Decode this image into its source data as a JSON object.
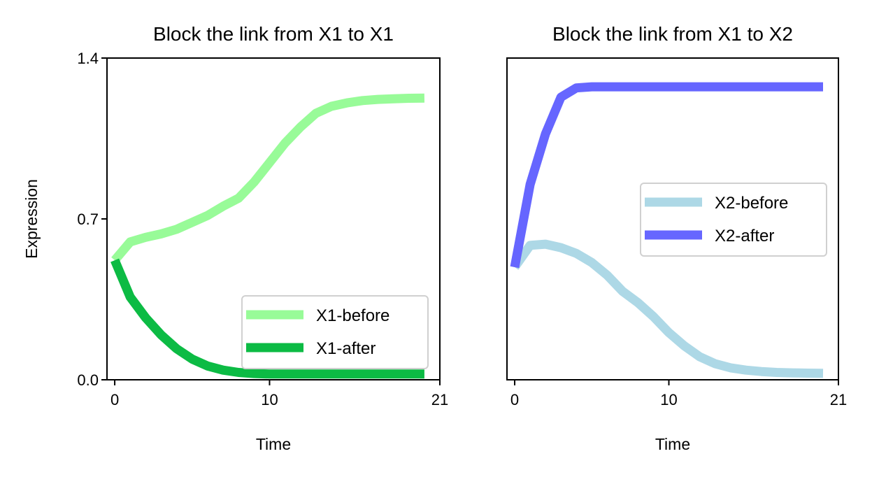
{
  "chart_data": [
    {
      "type": "line",
      "title": "Block the link from X1 to X1",
      "xlabel": "Time",
      "ylabel": "Expression",
      "xlim": [
        -0.5,
        21
      ],
      "ylim": [
        0.0,
        1.4
      ],
      "xticks": [
        "0",
        "10",
        "21"
      ],
      "yticks": [
        "0.0",
        "0.7",
        "1.4"
      ],
      "legend_position": "lower-right",
      "x": [
        0,
        1,
        2,
        3,
        4,
        5,
        6,
        7,
        8,
        9,
        10,
        11,
        12,
        13,
        14,
        15,
        16,
        17,
        18,
        19,
        20
      ],
      "series": [
        {
          "name": "X1-before",
          "color": "#98fb98",
          "values": [
            0.52,
            0.6,
            0.62,
            0.635,
            0.655,
            0.685,
            0.715,
            0.755,
            0.79,
            0.86,
            0.945,
            1.03,
            1.1,
            1.16,
            1.19,
            1.205,
            1.215,
            1.22,
            1.223,
            1.225,
            1.226
          ]
        },
        {
          "name": "X1-after",
          "color": "#0cbb44",
          "values": [
            0.52,
            0.36,
            0.27,
            0.195,
            0.135,
            0.09,
            0.06,
            0.042,
            0.032,
            0.027,
            0.025,
            0.025,
            0.025,
            0.025,
            0.025,
            0.025,
            0.025,
            0.025,
            0.025,
            0.025,
            0.025
          ]
        }
      ]
    },
    {
      "type": "line",
      "title": "Block the link from X1 to X2",
      "xlabel": "Time",
      "ylabel": "",
      "xlim": [
        -0.5,
        21
      ],
      "ylim": [
        0.0,
        1.4
      ],
      "xticks": [
        "0",
        "10",
        "21"
      ],
      "yticks": [],
      "legend_position": "center-right",
      "x": [
        0,
        1,
        2,
        3,
        4,
        5,
        6,
        7,
        8,
        9,
        10,
        11,
        12,
        13,
        14,
        15,
        16,
        17,
        18,
        19,
        20
      ],
      "series": [
        {
          "name": "X2-before",
          "color": "#add8e6",
          "values": [
            0.49,
            0.585,
            0.59,
            0.575,
            0.55,
            0.51,
            0.455,
            0.385,
            0.335,
            0.275,
            0.205,
            0.148,
            0.1,
            0.07,
            0.052,
            0.042,
            0.036,
            0.032,
            0.03,
            0.029,
            0.028
          ]
        },
        {
          "name": "X2-after",
          "color": "#6666ff",
          "values": [
            0.49,
            0.85,
            1.07,
            1.23,
            1.27,
            1.275,
            1.275,
            1.275,
            1.275,
            1.275,
            1.275,
            1.275,
            1.275,
            1.275,
            1.275,
            1.275,
            1.275,
            1.275,
            1.275,
            1.275,
            1.275
          ]
        }
      ]
    }
  ]
}
